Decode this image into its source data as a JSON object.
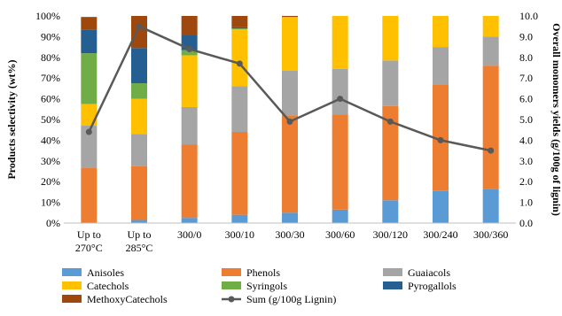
{
  "chart_data": {
    "type": "bar",
    "stacked": true,
    "categories": [
      "Up to\n270°C",
      "Up to\n285°C",
      "300/0",
      "300/10",
      "300/30",
      "300/60",
      "300/120",
      "300/240",
      "300/360"
    ],
    "series": [
      {
        "name": "Anisoles",
        "color": "#5b9bd5",
        "values": [
          0,
          1.5,
          2.5,
          4,
          5,
          6.5,
          11,
          15.5,
          16.5
        ]
      },
      {
        "name": "Phenols",
        "color": "#ed7d31",
        "values": [
          26.5,
          26,
          35.5,
          40,
          47,
          46,
          45.5,
          51.5,
          59.5
        ]
      },
      {
        "name": "Guaiacols",
        "color": "#a5a5a5",
        "values": [
          20.5,
          15.5,
          18,
          22,
          21.5,
          22,
          22,
          18,
          14
        ]
      },
      {
        "name": "Catechols",
        "color": "#ffc000",
        "values": [
          10.5,
          17,
          25,
          27.5,
          26,
          25.5,
          21.5,
          15,
          10
        ]
      },
      {
        "name": "Syringols",
        "color": "#70ad47",
        "values": [
          24.5,
          7.5,
          2.5,
          0.5,
          0,
          0,
          0,
          0,
          0
        ]
      },
      {
        "name": "Pyrogallols",
        "color": "#255e91",
        "values": [
          11.5,
          17,
          7.5,
          0.5,
          0,
          0,
          0,
          0,
          0
        ]
      },
      {
        "name": "MethoxyCatechols",
        "color": "#9e480e",
        "values": [
          6,
          15.5,
          9,
          5.5,
          0.5,
          0,
          0,
          0,
          0
        ]
      }
    ],
    "line_series": {
      "name": "Sum (g/100g Lignin)",
      "color": "#595959",
      "values": [
        4.4,
        9.5,
        8.4,
        7.7,
        4.9,
        6.0,
        4.9,
        4.0,
        3.5
      ]
    },
    "ylabel": "Products selectivity  (wt%)",
    "y2label": "Overall monomers yields (g/100g of lignin)",
    "ylim": [
      0,
      100
    ],
    "y2lim": [
      0,
      10
    ],
    "yticks": [
      "0%",
      "10%",
      "20%",
      "30%",
      "40%",
      "50%",
      "60%",
      "70%",
      "80%",
      "90%",
      "100%"
    ],
    "y2ticks": [
      "0.0",
      "1.0",
      "2.0",
      "3.0",
      "4.0",
      "5.0",
      "6.0",
      "7.0",
      "8.0",
      "9.0",
      "10.0"
    ],
    "legend_position": "bottom",
    "grid": false
  }
}
